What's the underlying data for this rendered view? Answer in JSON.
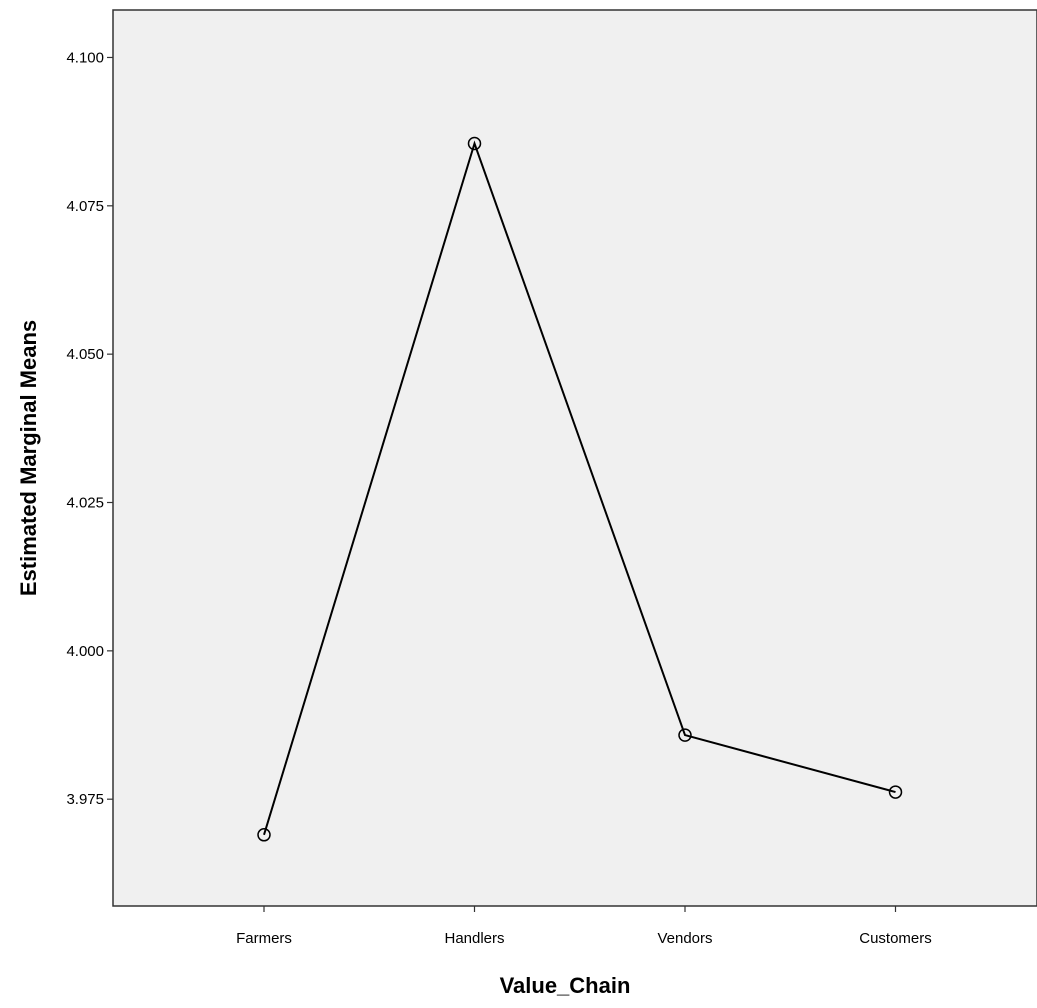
{
  "chart_data": {
    "type": "line",
    "categories": [
      "Farmers",
      "Handlers",
      "Vendors",
      "Customers"
    ],
    "values": [
      3.969,
      4.0855,
      3.9858,
      3.9762
    ],
    "xlabel": "Value_Chain",
    "ylabel": "Estimated Marginal Means",
    "ylim": [
      3.957,
      4.108
    ],
    "yticks": [
      3.975,
      4.0,
      4.025,
      4.05,
      4.075,
      4.1
    ],
    "ytick_labels": [
      "3.975",
      "4.000",
      "4.025",
      "4.050",
      "4.075",
      "4.100"
    ],
    "grid": false,
    "marker": "open-circle",
    "colors": {
      "plot_background": "#f0f0f0",
      "line": "#000000",
      "axis": "#333333"
    }
  }
}
